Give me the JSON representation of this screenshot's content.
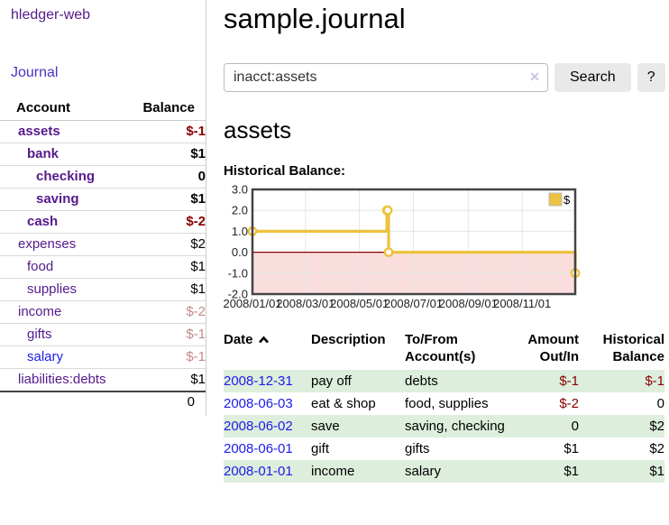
{
  "colors": {
    "link_purple": "#551a8b",
    "nav_purple": "#4636c0",
    "link_blue": "#1c1ce8",
    "negative": "#880000",
    "negative_dim": "#c48888",
    "stripe_green": "#ddeedd",
    "chart_line": "#edc240",
    "chart_negative_fill": "#fadede",
    "chart_zero_line": "#8b0000"
  },
  "sidebar": {
    "app_title": "hledger-web",
    "nav": {
      "journal_label": "Journal"
    },
    "accounts_table": {
      "headers": {
        "account": "Account",
        "balance": "Balance"
      },
      "rows": [
        {
          "name": "assets",
          "balance": "$-1",
          "level": 1,
          "bold": true,
          "negative": true,
          "dimmed": false
        },
        {
          "name": "bank",
          "balance": "$1",
          "level": 2,
          "bold": true,
          "negative": false,
          "dimmed": false
        },
        {
          "name": "checking",
          "balance": "0",
          "level": 3,
          "bold": true,
          "negative": false,
          "dimmed": false
        },
        {
          "name": "saving",
          "balance": "$1",
          "level": 3,
          "bold": true,
          "negative": false,
          "dimmed": false
        },
        {
          "name": "cash",
          "balance": "$-2",
          "level": 2,
          "bold": true,
          "negative": true,
          "dimmed": false
        },
        {
          "name": "expenses",
          "balance": "$2",
          "level": 1,
          "bold": false,
          "negative": false,
          "dimmed": false
        },
        {
          "name": "food",
          "balance": "$1",
          "level": 2,
          "bold": false,
          "negative": false,
          "dimmed": false
        },
        {
          "name": "supplies",
          "balance": "$1",
          "level": 2,
          "bold": false,
          "negative": false,
          "dimmed": false
        },
        {
          "name": "income",
          "balance": "$-2",
          "level": 1,
          "bold": false,
          "negative": true,
          "dimmed": true
        },
        {
          "name": "gifts",
          "balance": "$-1",
          "level": 2,
          "bold": false,
          "negative": true,
          "dimmed": true
        },
        {
          "name": "salary",
          "balance": "$-1",
          "level": 2,
          "bold": false,
          "negative": true,
          "dimmed": true,
          "unvisited": true
        },
        {
          "name": "liabilities:debts",
          "balance": "$1",
          "level": 1,
          "bold": false,
          "negative": false,
          "dimmed": false
        }
      ],
      "total": "0"
    }
  },
  "header": {
    "title": "sample.journal"
  },
  "search": {
    "value": "inacct:assets",
    "clear_icon": "✕",
    "button_label": "Search",
    "help_label": "?"
  },
  "account_page": {
    "title": "assets",
    "chart_heading": "Historical Balance:"
  },
  "chart_data": {
    "type": "line",
    "title": "Historical Balance",
    "step": true,
    "series": [
      {
        "name": "$",
        "color": "#edc240",
        "points": [
          [
            "2008-01-01",
            1
          ],
          [
            "2008-06-01",
            2
          ],
          [
            "2008-06-02",
            2
          ],
          [
            "2008-06-03",
            0
          ],
          [
            "2008-12-31",
            -1
          ]
        ]
      }
    ],
    "xlim": [
      "2008-01-01",
      "2008-12-31"
    ],
    "ylim": [
      -2,
      3
    ],
    "x_ticks": [
      "2008/01/01",
      "2008/03/01",
      "2008/05/01",
      "2008/07/01",
      "2008/09/01",
      "2008/11/01"
    ],
    "y_ticks": [
      3.0,
      2.0,
      1.0,
      0.0,
      -1.0,
      -2.0
    ],
    "grid": true,
    "legend": {
      "label": "$",
      "position": "top-right"
    },
    "negative_region_fill": "#fadede",
    "zero_line_color": "#8b0000"
  },
  "register_table": {
    "headers": {
      "date": "Date",
      "description": "Description",
      "tofrom": "To/From\nAccount(s)",
      "amount": "Amount\nOut/In",
      "balance": "Historical\nBalance"
    },
    "rows": [
      {
        "date": "2008-12-31",
        "description": "pay off",
        "accounts": "debts",
        "amount": "$-1",
        "balance": "$-1"
      },
      {
        "date": "2008-06-03",
        "description": "eat & shop",
        "accounts": "food, supplies",
        "amount": "$-2",
        "balance": "0"
      },
      {
        "date": "2008-06-02",
        "description": "save",
        "accounts": "saving, checking",
        "amount": "0",
        "balance": "$2"
      },
      {
        "date": "2008-06-01",
        "description": "gift",
        "accounts": "gifts",
        "amount": "$1",
        "balance": "$2"
      },
      {
        "date": "2008-01-01",
        "description": "income",
        "accounts": "salary",
        "amount": "$1",
        "balance": "$1"
      }
    ]
  }
}
